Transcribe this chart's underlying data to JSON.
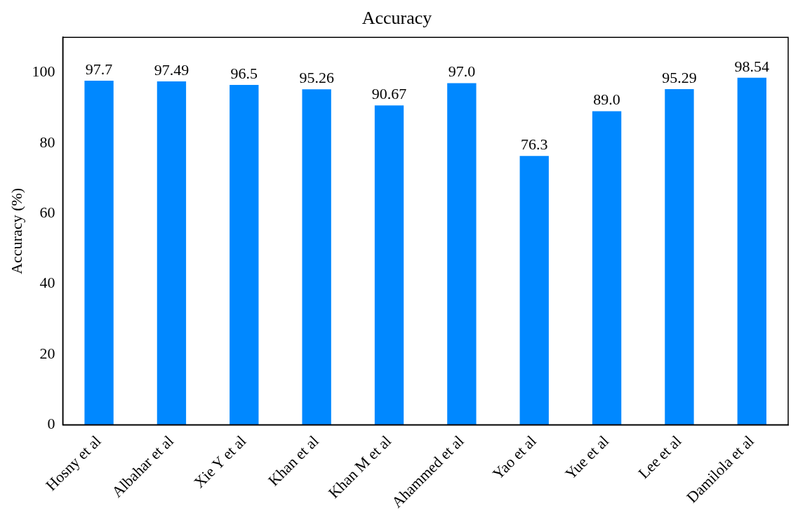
{
  "chart_data": {
    "type": "bar",
    "title": "Accuracy",
    "ylabel": "Accuracy (%)",
    "categories": [
      "Hosny et al",
      "Albahar et al",
      "Xie Y et al",
      "Khan et al",
      "Khan M et al",
      "Ahammed et al",
      "Yao et al",
      "Yue et al",
      "Lee et al",
      "Damilola et al"
    ],
    "values": [
      97.7,
      97.49,
      96.5,
      95.26,
      90.67,
      97.0,
      76.3,
      89.0,
      95.29,
      98.54
    ],
    "value_labels": [
      "97.7",
      "97.49",
      "96.5",
      "95.26",
      "90.67",
      "97.0",
      "76.3",
      "89.0",
      "95.29",
      "98.54"
    ],
    "color": "#0088ff",
    "ylim": [
      0,
      110
    ],
    "yticks": [
      0,
      20,
      40,
      60,
      80,
      100
    ],
    "grid": false,
    "legend": false
  }
}
